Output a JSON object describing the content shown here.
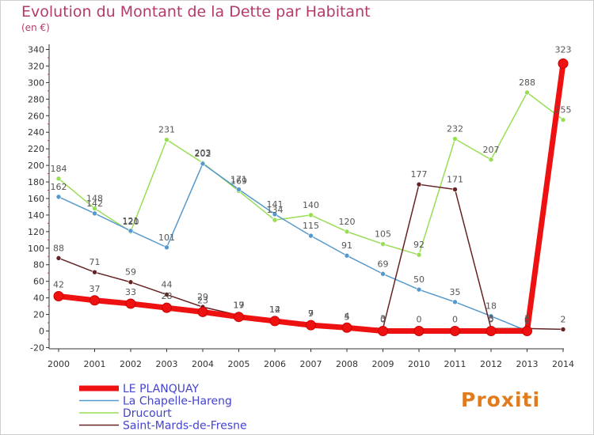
{
  "page": {
    "title": "Evolution du Montant de la Dette par Habitant",
    "unit": "(en €)",
    "logo": "Proxiti"
  },
  "chart_data": {
    "type": "line",
    "title": "Evolution du Montant de la Dette par Habitant",
    "subtitle": "(en €)",
    "xlabel": "",
    "ylabel": "",
    "x": [
      2000,
      2001,
      2002,
      2003,
      2004,
      2005,
      2006,
      2007,
      2008,
      2009,
      2010,
      2011,
      2012,
      2013,
      2014
    ],
    "ylim": [
      -20,
      340
    ],
    "yticks": [
      -20,
      0,
      20,
      40,
      60,
      80,
      100,
      120,
      140,
      160,
      180,
      200,
      220,
      240,
      260,
      280,
      300,
      320,
      340
    ],
    "grid": false,
    "legend_position": "bottom-left",
    "series": [
      {
        "name": "Drucourt",
        "color": "#99dd55",
        "values": [
          184,
          148,
          120,
          231,
          203,
          169,
          134,
          140,
          120,
          105,
          92,
          232,
          207,
          288,
          255
        ]
      },
      {
        "name": "La Chapelle-Hareng",
        "color": "#5599cc",
        "values": [
          162,
          142,
          121,
          101,
          202,
          171,
          141,
          115,
          91,
          69,
          50,
          35,
          18,
          0,
          null
        ]
      },
      {
        "name": "Saint-Mards-de-Fresne",
        "color": "#662222",
        "values": [
          88,
          71,
          59,
          44,
          29,
          19,
          14,
          9,
          5,
          3,
          177,
          171,
          3,
          3,
          2
        ]
      },
      {
        "name": "LE PLANQUAY",
        "color": "#ee1111",
        "values": [
          42,
          37,
          33,
          28,
          23,
          17,
          12,
          7,
          4,
          0,
          0,
          0,
          0,
          0,
          323
        ]
      }
    ],
    "data_labels": [
      {
        "series": 0,
        "i": 0,
        "text": "184",
        "dy": -9
      },
      {
        "series": 0,
        "i": 1,
        "text": "148",
        "dy": -9
      },
      {
        "series": 0,
        "i": 2,
        "text": "120",
        "dy": -9
      },
      {
        "series": 0,
        "i": 3,
        "text": "231",
        "dy": -9
      },
      {
        "series": 0,
        "i": 4,
        "text": "203",
        "dy": -9
      },
      {
        "series": 0,
        "i": 5,
        "text": "169",
        "dy": -9
      },
      {
        "series": 0,
        "i": 6,
        "text": "134",
        "dy": -9
      },
      {
        "series": 0,
        "i": 7,
        "text": "140",
        "dy": -9
      },
      {
        "series": 0,
        "i": 8,
        "text": "120",
        "dy": -9
      },
      {
        "series": 0,
        "i": 9,
        "text": "105",
        "dy": -9
      },
      {
        "series": 0,
        "i": 10,
        "text": "92",
        "dy": -9
      },
      {
        "series": 0,
        "i": 11,
        "text": "232",
        "dy": -9
      },
      {
        "series": 0,
        "i": 12,
        "text": "207",
        "dy": -9
      },
      {
        "series": 0,
        "i": 13,
        "text": "288",
        "dy": -9
      },
      {
        "series": 0,
        "i": 14,
        "text": "255",
        "dy": -9
      },
      {
        "series": 1,
        "i": 0,
        "text": "162",
        "dy": -9
      },
      {
        "series": 1,
        "i": 1,
        "text": "142",
        "dy": -9
      },
      {
        "series": 1,
        "i": 2,
        "text": "121",
        "dy": -9
      },
      {
        "series": 1,
        "i": 3,
        "text": "101",
        "dy": -9
      },
      {
        "series": 1,
        "i": 4,
        "text": "202",
        "dy": -9
      },
      {
        "series": 1,
        "i": 5,
        "text": "171",
        "dy": -9
      },
      {
        "series": 1,
        "i": 6,
        "text": "141",
        "dy": -9
      },
      {
        "series": 1,
        "i": 7,
        "text": "115",
        "dy": -9
      },
      {
        "series": 1,
        "i": 8,
        "text": "91",
        "dy": -9
      },
      {
        "series": 1,
        "i": 9,
        "text": "69",
        "dy": -9
      },
      {
        "series": 1,
        "i": 10,
        "text": "50",
        "dy": -9
      },
      {
        "series": 1,
        "i": 11,
        "text": "35",
        "dy": -9
      },
      {
        "series": 1,
        "i": 12,
        "text": "18",
        "dy": -9
      },
      {
        "series": 1,
        "i": 13,
        "text": "0",
        "dy": -9
      },
      {
        "series": 2,
        "i": 0,
        "text": "88",
        "dy": -9
      },
      {
        "series": 2,
        "i": 1,
        "text": "71",
        "dy": -9
      },
      {
        "series": 2,
        "i": 2,
        "text": "59",
        "dy": -9
      },
      {
        "series": 2,
        "i": 3,
        "text": "44",
        "dy": -9
      },
      {
        "series": 2,
        "i": 4,
        "text": "29",
        "dy": -9
      },
      {
        "series": 2,
        "i": 5,
        "text": "19",
        "dy": -9
      },
      {
        "series": 2,
        "i": 6,
        "text": "14",
        "dy": -9
      },
      {
        "series": 2,
        "i": 7,
        "text": "9",
        "dy": -9
      },
      {
        "series": 2,
        "i": 8,
        "text": "5",
        "dy": -9
      },
      {
        "series": 2,
        "i": 9,
        "text": "3",
        "dy": -9
      },
      {
        "series": 2,
        "i": 10,
        "text": "177",
        "dy": -9
      },
      {
        "series": 2,
        "i": 11,
        "text": "171",
        "dy": -9
      },
      {
        "series": 2,
        "i": 12,
        "text": "3",
        "dy": -9
      },
      {
        "series": 2,
        "i": 13,
        "text": "3",
        "dy": -9
      },
      {
        "series": 2,
        "i": 14,
        "text": "2",
        "dy": -9
      },
      {
        "series": 3,
        "i": 0,
        "text": "42",
        "dy": -11
      },
      {
        "series": 3,
        "i": 1,
        "text": "37",
        "dy": -11
      },
      {
        "series": 3,
        "i": 2,
        "text": "33",
        "dy": -11
      },
      {
        "series": 3,
        "i": 3,
        "text": "28",
        "dy": -11
      },
      {
        "series": 3,
        "i": 4,
        "text": "23",
        "dy": -11
      },
      {
        "series": 3,
        "i": 5,
        "text": "17",
        "dy": -11
      },
      {
        "series": 3,
        "i": 6,
        "text": "12",
        "dy": -11
      },
      {
        "series": 3,
        "i": 7,
        "text": "7",
        "dy": -11
      },
      {
        "series": 3,
        "i": 8,
        "text": "4",
        "dy": -11
      },
      {
        "series": 3,
        "i": 9,
        "text": "0",
        "dy": -11
      },
      {
        "series": 3,
        "i": 10,
        "text": "0",
        "dy": -11
      },
      {
        "series": 3,
        "i": 11,
        "text": "0",
        "dy": -11
      },
      {
        "series": 3,
        "i": 12,
        "text": "0",
        "dy": -11
      },
      {
        "series": 3,
        "i": 13,
        "text": "0",
        "dy": -11
      },
      {
        "series": 3,
        "i": 14,
        "text": "323",
        "dy": -14
      }
    ]
  },
  "legend": {
    "items": [
      {
        "label": "LE PLANQUAY",
        "color": "#ee1111",
        "bold": true
      },
      {
        "label": "La Chapelle-Hareng",
        "color": "#5599cc",
        "bold": false
      },
      {
        "label": "Drucourt",
        "color": "#99dd55",
        "bold": false
      },
      {
        "label": "Saint-Mards-de-Fresne",
        "color": "#662222",
        "bold": false
      }
    ],
    "text_color": "#4444cc"
  }
}
